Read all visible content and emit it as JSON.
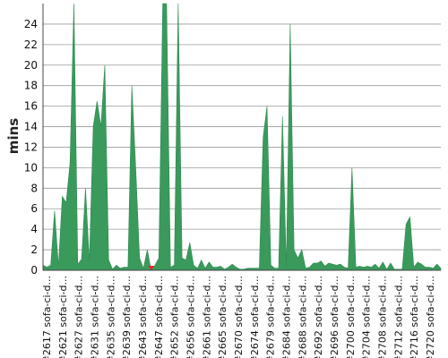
{
  "chart_data": {
    "type": "area",
    "title": "",
    "xlabel": "",
    "ylabel": "mins",
    "ylim": [
      0,
      26
    ],
    "yticks": [
      0,
      2,
      4,
      6,
      8,
      10,
      12,
      14,
      16,
      18,
      20,
      22,
      24
    ],
    "grid": true,
    "legend": "none",
    "colors": {
      "success": "#3a9a5c",
      "failure": "#e8252f",
      "grid": "#9a9a9a",
      "axis": "#444444"
    },
    "x_tick_labels": [
      "#2617 sofa-ci-d...",
      "#2621 sofa-ci-d...",
      "#2627 sofa-ci-d...",
      "#2631 sofa-ci-d...",
      "#2635 sofa-ci-d...",
      "#2639 sofa-ci-d...",
      "#2643 sofa-ci-d...",
      "#2647 sofa-ci-d...",
      "#2652 sofa-ci-d...",
      "#2656 sofa-ci-d...",
      "#2661 sofa-ci-d...",
      "#2665 sofa-ci-d...",
      "#2670 sofa-ci-d...",
      "#2674 sofa-ci-d...",
      "#2679 sofa-ci-d...",
      "#2684 sofa-ci-d...",
      "#2688 sofa-ci-d...",
      "#2692 sofa-ci-d...",
      "#2696 sofa-ci-d...",
      "#2700 sofa-ci-d...",
      "#2704 sofa-ci-d...",
      "#2708 sofa-ci-d...",
      "#2712 sofa-ci-d...",
      "#2716 sofa-ci-d...",
      "#2720 sofa-ci-d..."
    ],
    "values": [
      0.5,
      0.3,
      0.5,
      5.8,
      0.4,
      7.2,
      6.6,
      10.5,
      30,
      0.6,
      1.1,
      8.0,
      0.9,
      14.0,
      16.5,
      14.0,
      20.0,
      1.0,
      0.1,
      0.5,
      0.2,
      0.3,
      0.3,
      18.0,
      10.0,
      1.2,
      0.2,
      2.0,
      0.0,
      0.5,
      1.2,
      28.0,
      28.0,
      0.3,
      0.5,
      28.0,
      1.2,
      1.0,
      2.7,
      0.5,
      0.2,
      1.0,
      0.2,
      0.8,
      0.3,
      0.3,
      0.4,
      0.1,
      0.3,
      0.6,
      0.3,
      0.1,
      0.1,
      0.2,
      0.2,
      0.2,
      0.2,
      13.0,
      16.0,
      0.5,
      0.2,
      0.2,
      15.0,
      0.2,
      24.0,
      2.0,
      1.2,
      2.0,
      0.2,
      0.3,
      0.7,
      0.7,
      0.9,
      0.4,
      0.7,
      0.6,
      0.5,
      0.6,
      0.3,
      0.2,
      10.0,
      0.3,
      0.4,
      0.3,
      0.4,
      0.3,
      0.6,
      0.2,
      0.8,
      0.1,
      0.7,
      0.1,
      0.1,
      0.1,
      4.5,
      5.2,
      0.3,
      0.8,
      0.6,
      0.3,
      0.3,
      0.2,
      0.6,
      0.2
    ],
    "failed_builds": [
      "#2648"
    ]
  }
}
